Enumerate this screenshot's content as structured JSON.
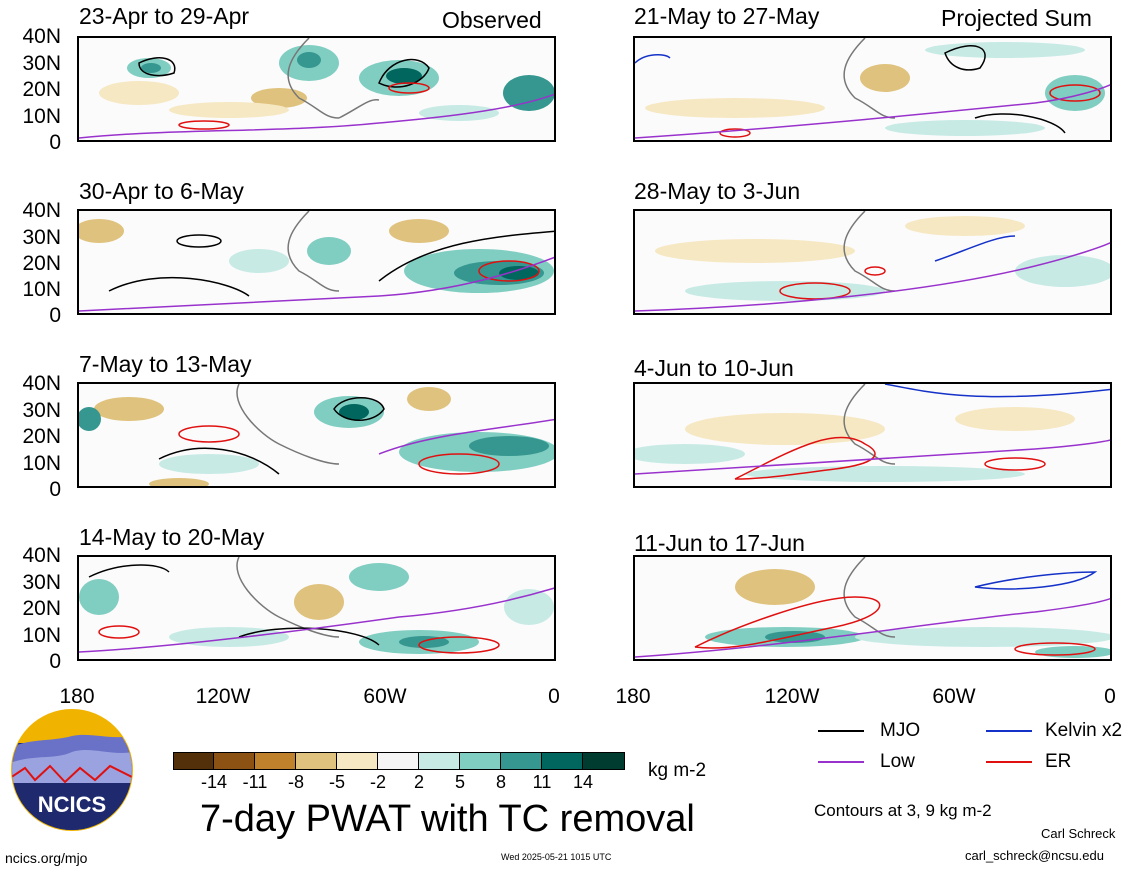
{
  "header_left": "Observed",
  "header_right": "Projected Sum",
  "panels_left": [
    {
      "period": "23-Apr to 29-Apr"
    },
    {
      "period": "30-Apr to 6-May"
    },
    {
      "period": "7-May to 13-May"
    },
    {
      "period": "14-May to 20-May"
    }
  ],
  "panels_right": [
    {
      "period": "21-May to 27-May"
    },
    {
      "period": "28-May to 3-Jun"
    },
    {
      "period": "4-Jun to 10-Jun"
    },
    {
      "period": "11-Jun to 17-Jun"
    }
  ],
  "lat_labels": [
    "40N",
    "30N",
    "20N",
    "10N",
    "0"
  ],
  "lon_labels": [
    "180",
    "120W",
    "60W",
    "0"
  ],
  "colorbar": {
    "labels": [
      "-14",
      "-11",
      "-8",
      "-5",
      "-2",
      "2",
      "5",
      "8",
      "11",
      "14"
    ],
    "colors": [
      "#54300a",
      "#8c5214",
      "#bf812c",
      "#dfc27d",
      "#f6e8c3",
      "#f5f5f5",
      "#c7eae5",
      "#80cdc1",
      "#35978f",
      "#01665e",
      "#003c30"
    ],
    "units": "kg m-2"
  },
  "legend": [
    {
      "name": "MJO",
      "color": "#000000"
    },
    {
      "name": "Kelvin x2",
      "color": "#1432c8"
    },
    {
      "name": "Low",
      "color": "#9932cc"
    },
    {
      "name": "ER",
      "color": "#e01010"
    }
  ],
  "title": "7-day PWAT with TC removal",
  "contours_note": "Contours at 3, 9 kg m-2",
  "logo_text": "NCICS",
  "author": "Carl Schreck",
  "email": "carl_schreck@ncsu.edu",
  "url": "ncics.org/mjo",
  "timestamp": "Wed 2025-05-21 1015 UTC"
}
